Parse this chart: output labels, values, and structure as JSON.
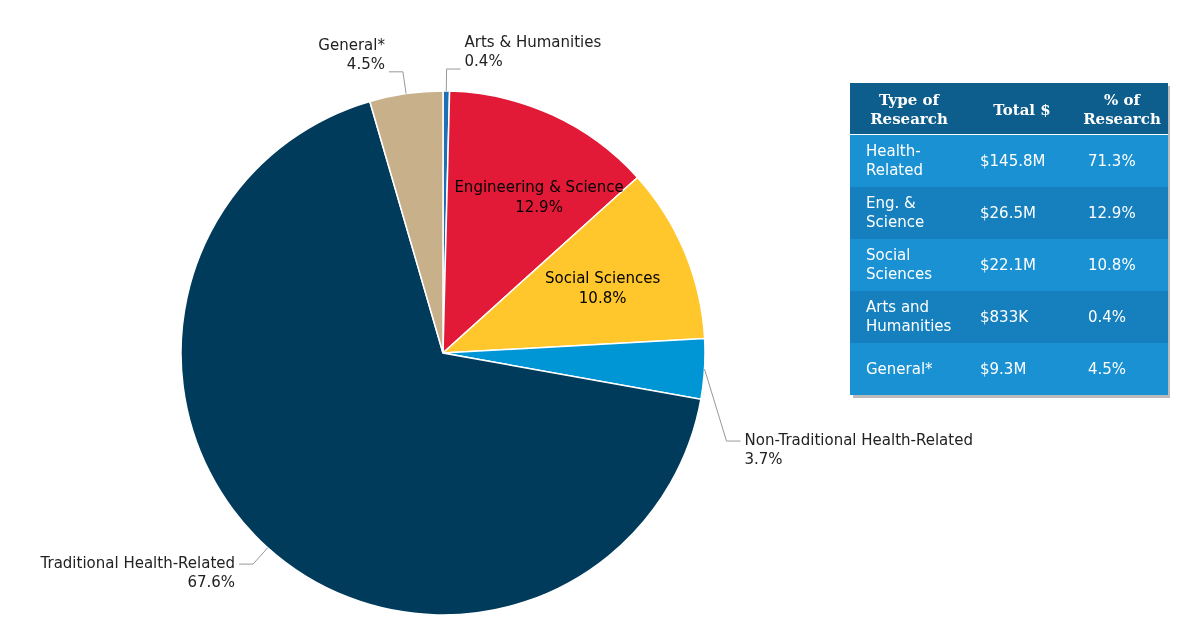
{
  "chart_data": [
    {
      "type": "pie",
      "categories": [
        "Arts & Humanities",
        "Engineering & Science",
        "Social Sciences",
        "Non-Traditional Health-Related",
        "Traditional Health-Related",
        "General*"
      ],
      "values": [
        0.4,
        12.9,
        10.8,
        3.7,
        67.6,
        4.5
      ],
      "colors": [
        "#1f6fb5",
        "#e31a37",
        "#ffc72c",
        "#0096d6",
        "#003b5c",
        "#c8b08a"
      ],
      "value_labels": [
        "0.4%",
        "12.9%",
        "10.8%",
        "3.7%",
        "67.6%",
        "4.5%"
      ]
    },
    {
      "type": "other",
      "annotations": [
        "Type of Research",
        "Total $",
        "% of Research",
        "Health-Related",
        "$145.8M",
        "71.3%",
        "Eng. & Science",
        "$26.5M",
        "12.9%",
        "Social Sciences",
        "$22.1M",
        "10.8%",
        "Arts and Humanities",
        "$833K",
        "0.4%",
        "General*",
        "$9.3M",
        "4.5%"
      ]
    }
  ]
}
